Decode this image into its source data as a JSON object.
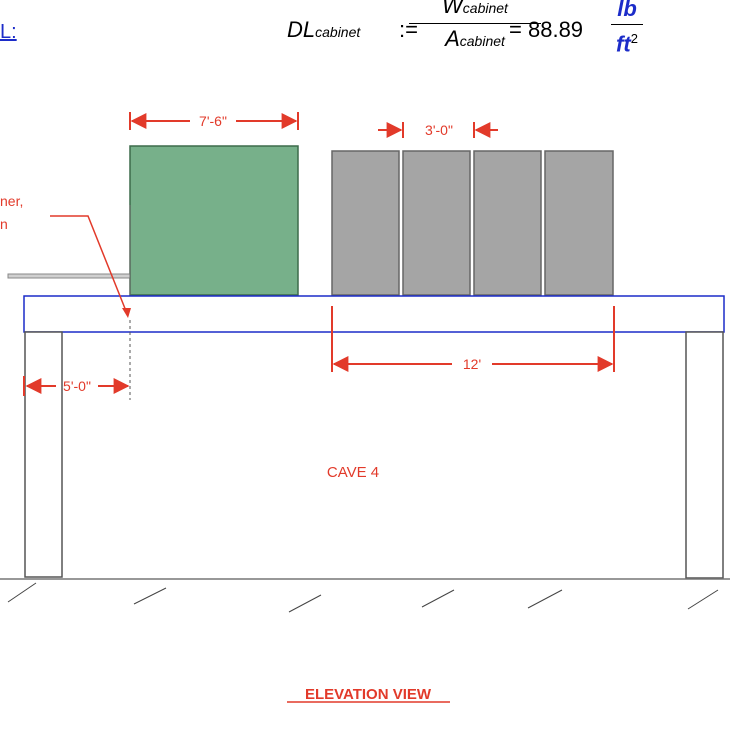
{
  "formula": {
    "lhs_symbol": "DL",
    "lhs_sub": "cabinet",
    "assign": ":=",
    "num_symbol": "W",
    "num_sub": "cabinet",
    "den_symbol": "A",
    "den_sub": "cabinet",
    "equals": "=",
    "value": "88.89",
    "unit_top": "lb",
    "unit_bottom": "ft",
    "unit_exp": "2"
  },
  "link_fragment": "L:",
  "diagram": {
    "dim_cabinet_width": "7'-6\"",
    "dim_module_width": "3'-0\"",
    "dim_span": "12'",
    "dim_offset": "5'-0\"",
    "callout_line1": "ner,",
    "callout_line2": "n",
    "room_label": "CAVE 4",
    "view_title": "ELEVATION VIEW"
  },
  "colors": {
    "green_cabinet": "#77b08a",
    "gray_cabinet": "#a5a5a5",
    "beam_outline": "#1c2cc9",
    "dimension": "#e23a2a"
  }
}
